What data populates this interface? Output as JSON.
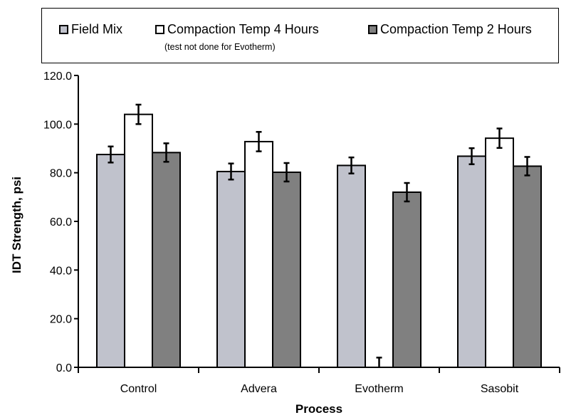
{
  "chart_data": {
    "type": "bar",
    "categories": [
      "Control",
      "Advera",
      "Evotherm",
      "Sasobit"
    ],
    "series": [
      {
        "name": "Field Mix",
        "values": [
          87.5,
          80.5,
          83.0,
          86.8
        ],
        "errors": [
          3.3,
          3.3,
          3.3,
          3.3
        ],
        "color": "#c0c2cc"
      },
      {
        "name": "Compaction Temp 4 Hours",
        "values": [
          104.0,
          92.8,
          0.0,
          94.2
        ],
        "errors": [
          4.0,
          4.0,
          4.0,
          4.0
        ],
        "color": "#ffffff"
      },
      {
        "name": "Compaction Temp 2 Hours",
        "values": [
          88.3,
          80.2,
          72.0,
          82.7
        ],
        "errors": [
          3.8,
          3.8,
          3.8,
          3.8
        ],
        "color": "#808080"
      }
    ],
    "legend_note": "(test not done for Evotherm)",
    "xlabel": "Process",
    "ylabel": "IDT Strength, psi",
    "ylim": [
      0,
      120
    ],
    "yticks": [
      "0.0",
      "20.0",
      "40.0",
      "60.0",
      "80.0",
      "100.0",
      "120.0"
    ],
    "grid": false,
    "legend_position": "top"
  }
}
